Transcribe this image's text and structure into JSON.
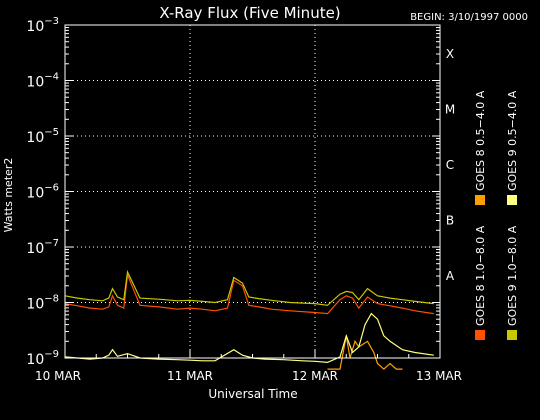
{
  "chart_data": {
    "type": "line",
    "title": "X-Ray Flux (Five Minute)",
    "begin_label": "BEGIN: 3/10/1997 0000",
    "xlabel": "Universal Time",
    "ylabel": "Watts meter2",
    "yscale": "log",
    "ylim_exp": [
      -9,
      -3
    ],
    "y_ticks": [
      {
        "base": "10",
        "exp": "−9"
      },
      {
        "base": "10",
        "exp": "−8"
      },
      {
        "base": "10",
        "exp": "−7"
      },
      {
        "base": "10",
        "exp": "−6"
      },
      {
        "base": "10",
        "exp": "−5"
      },
      {
        "base": "10",
        "exp": "−4"
      },
      {
        "base": "10",
        "exp": "−3"
      }
    ],
    "x_ticks": [
      "10 MAR",
      "11 MAR",
      "12 MAR",
      "13 MAR"
    ],
    "xlim_days": [
      0,
      3
    ],
    "flare_classes": [
      {
        "label": "A",
        "exp": -8
      },
      {
        "label": "B",
        "exp": -7
      },
      {
        "label": "C",
        "exp": -6
      },
      {
        "label": "M",
        "exp": -5
      },
      {
        "label": "X",
        "exp": -4
      }
    ],
    "grid": "vertical dotted at day boundaries, horizontal dotted at decades",
    "legend_placement": "right, vertical",
    "series": [
      {
        "name": "GOES 8  1.0−8.0 A",
        "color": "#ff5000",
        "x": [
          0,
          0.1,
          0.2,
          0.3,
          0.35,
          0.38,
          0.42,
          0.47,
          0.5,
          0.6,
          0.75,
          0.9,
          1.0,
          1.1,
          1.2,
          1.3,
          1.35,
          1.42,
          1.47,
          1.55,
          1.65,
          1.8,
          2.0,
          2.1,
          2.2,
          2.25,
          2.3,
          2.35,
          2.42,
          2.5,
          2.6,
          2.7,
          2.8,
          2.95
        ],
        "y_exp": [
          -8.02,
          -8.06,
          -8.1,
          -8.12,
          -8.08,
          -7.88,
          -8.05,
          -8.1,
          -7.5,
          -8.05,
          -8.08,
          -8.12,
          -8.1,
          -8.12,
          -8.15,
          -8.1,
          -7.6,
          -7.7,
          -8.05,
          -8.08,
          -8.12,
          -8.15,
          -8.18,
          -8.2,
          -7.95,
          -7.88,
          -7.92,
          -8.1,
          -7.9,
          -8.02,
          -8.06,
          -8.1,
          -8.15,
          -8.2
        ]
      },
      {
        "name": "GOES 8  0.5−4.0 A",
        "color": "#ffa000",
        "x": [
          2.1,
          2.2,
          2.25,
          2.28,
          2.32,
          2.35,
          2.42,
          2.47,
          2.5,
          2.55,
          2.6,
          2.65,
          2.7
        ],
        "y_exp": [
          -9.2,
          -9.2,
          -8.6,
          -9.0,
          -8.7,
          -8.8,
          -8.7,
          -8.9,
          -9.1,
          -9.2,
          -9.1,
          -9.2,
          -9.2
        ]
      },
      {
        "name": "GOES 9  0.5−4.0 A",
        "color": "#ffff80",
        "x": [
          0,
          0.1,
          0.2,
          0.3,
          0.35,
          0.38,
          0.42,
          0.5,
          0.6,
          0.75,
          0.9,
          1.0,
          1.1,
          1.2,
          1.35,
          1.42,
          1.5,
          1.6,
          1.75,
          1.9,
          2.0,
          2.1,
          2.2,
          2.25,
          2.3,
          2.35,
          2.4,
          2.45,
          2.5,
          2.55,
          2.6,
          2.7,
          2.8,
          2.95
        ],
        "y_exp": [
          -8.98,
          -9.0,
          -9.02,
          -9.0,
          -8.95,
          -8.85,
          -8.97,
          -8.92,
          -9.0,
          -9.02,
          -9.03,
          -9.04,
          -9.05,
          -9.05,
          -8.85,
          -8.95,
          -9.0,
          -9.02,
          -9.03,
          -9.05,
          -9.06,
          -9.08,
          -8.98,
          -8.6,
          -8.9,
          -8.8,
          -8.4,
          -8.2,
          -8.3,
          -8.6,
          -8.7,
          -8.85,
          -8.9,
          -8.95
        ]
      },
      {
        "name": "GOES 9  1.0−8.0 A",
        "color": "#c8c800",
        "x": [
          0,
          0.1,
          0.2,
          0.3,
          0.35,
          0.38,
          0.42,
          0.47,
          0.5,
          0.6,
          0.75,
          0.9,
          1.0,
          1.1,
          1.2,
          1.3,
          1.35,
          1.42,
          1.47,
          1.55,
          1.65,
          1.8,
          2.0,
          2.1,
          2.2,
          2.25,
          2.3,
          2.35,
          2.42,
          2.5,
          2.6,
          2.7,
          2.8,
          2.95
        ],
        "y_exp": [
          -7.88,
          -7.92,
          -7.95,
          -7.97,
          -7.92,
          -7.75,
          -7.9,
          -7.95,
          -7.45,
          -7.92,
          -7.94,
          -7.97,
          -7.96,
          -7.98,
          -8.0,
          -7.95,
          -7.55,
          -7.65,
          -7.9,
          -7.93,
          -7.96,
          -8.0,
          -8.02,
          -8.05,
          -7.85,
          -7.8,
          -7.82,
          -7.95,
          -7.75,
          -7.88,
          -7.92,
          -7.95,
          -7.98,
          -8.02
        ]
      }
    ]
  }
}
